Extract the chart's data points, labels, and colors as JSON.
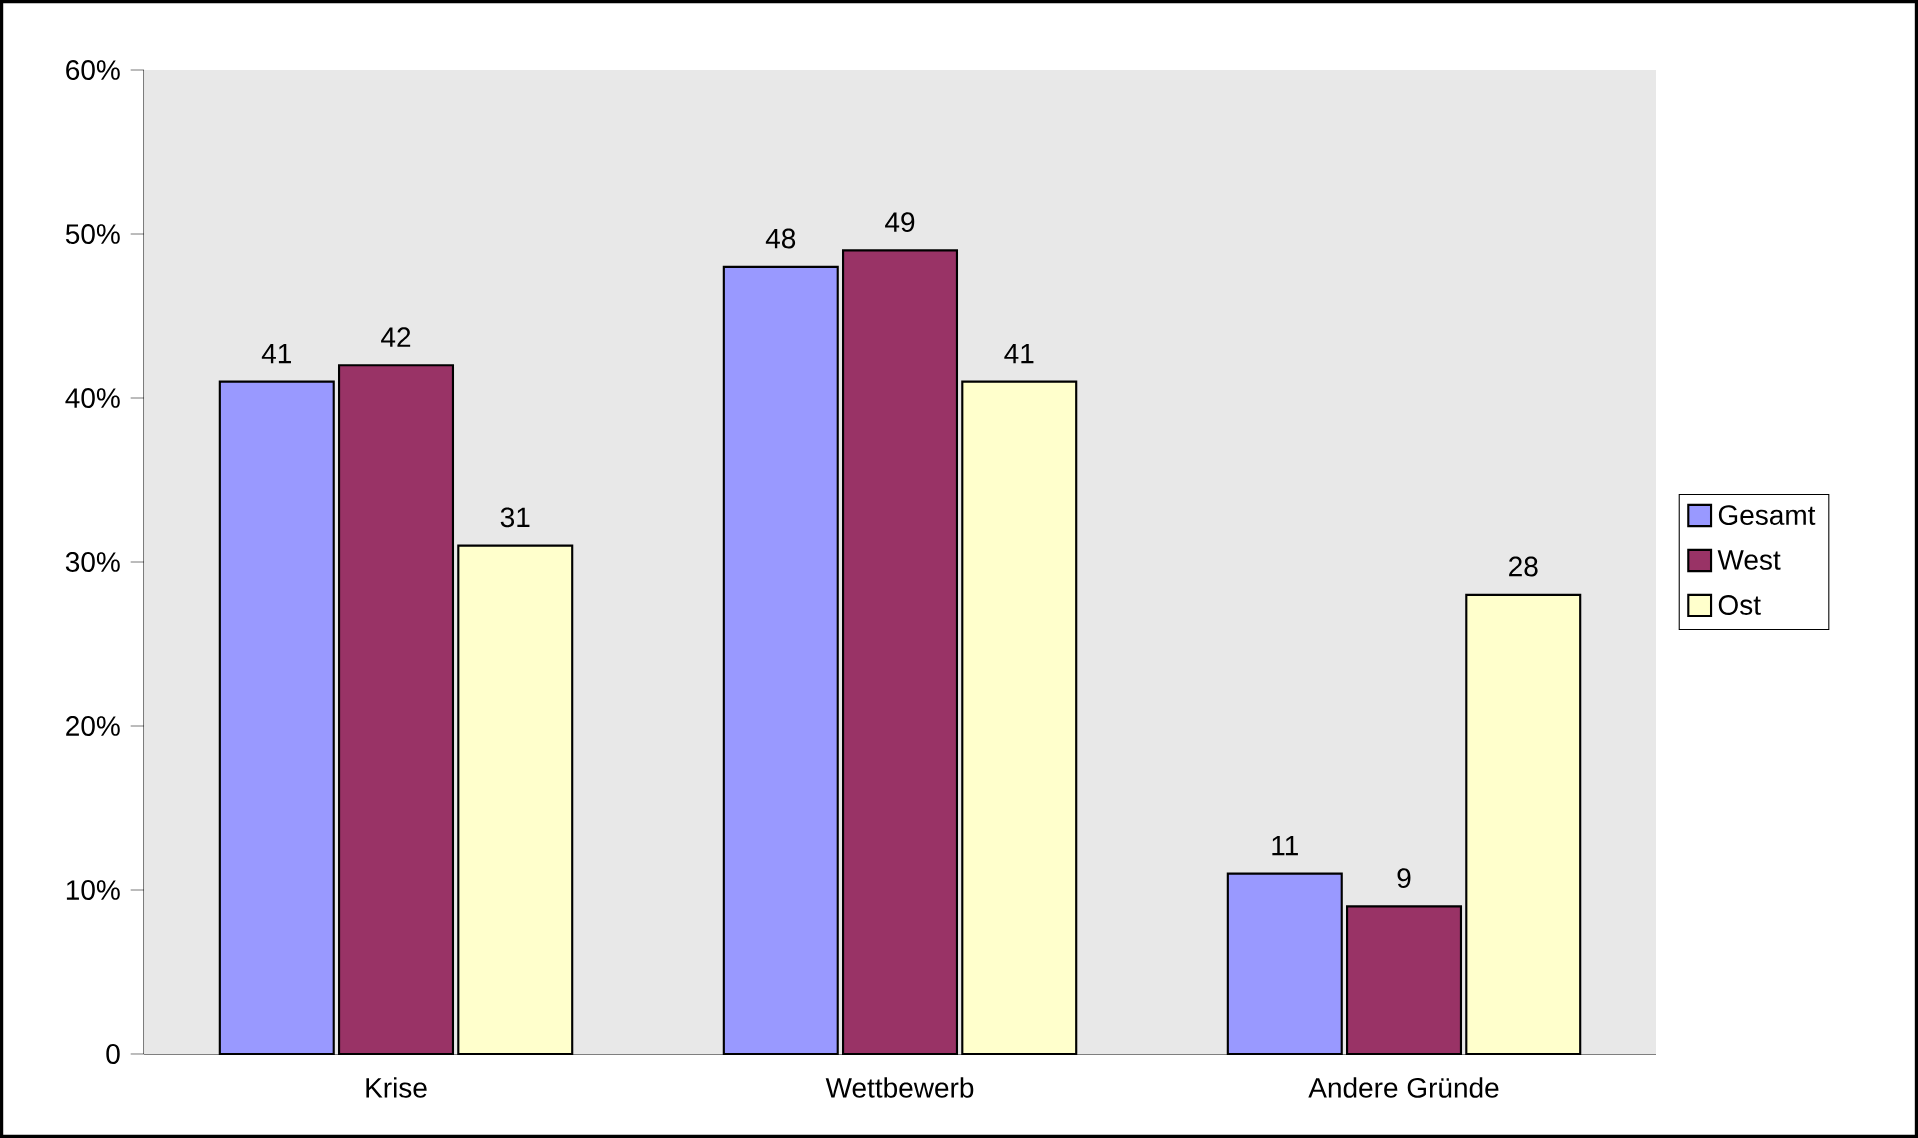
{
  "chart_data": {
    "type": "bar",
    "categories": [
      "Krise",
      "Wettbewerb",
      "Andere Gründe"
    ],
    "series": [
      {
        "name": "Gesamt",
        "color": "#9999ff",
        "values": [
          41,
          48,
          11
        ]
      },
      {
        "name": "West",
        "color": "#993366",
        "values": [
          42,
          49,
          9
        ]
      },
      {
        "name": "Ost",
        "color": "#ffffcc",
        "values": [
          31,
          41,
          28
        ]
      }
    ],
    "ylim": [
      0,
      60
    ],
    "yticks": [
      0,
      {
        "value": 10,
        "label": "10%"
      },
      {
        "value": 20,
        "label": "20%"
      },
      {
        "value": 30,
        "label": "30%"
      },
      {
        "value": 40,
        "label": "40%"
      },
      {
        "value": 50,
        "label": "50%"
      },
      {
        "value": 60,
        "label": "60%"
      }
    ],
    "data_labels": true,
    "legend": "right",
    "grid": false
  }
}
